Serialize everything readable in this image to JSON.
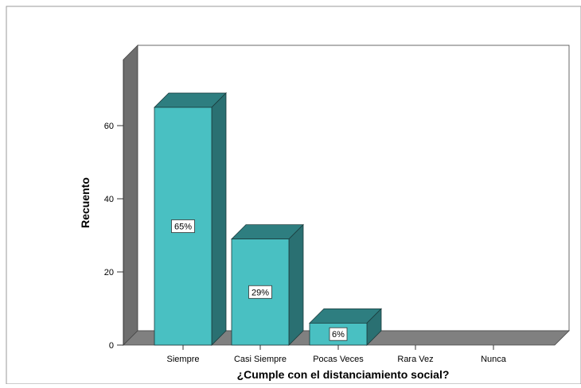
{
  "chart_data": {
    "type": "bar",
    "xlabel": "¿Cumple con el distanciamiento social?",
    "ylabel": "Recuento",
    "categories": [
      "Siempre",
      "Casi Siempre",
      "Pocas Veces",
      "Rara Vez",
      "Nunca"
    ],
    "values": [
      65,
      29,
      6,
      0,
      0
    ],
    "labels": [
      "65%",
      "29%",
      "6%",
      "",
      ""
    ],
    "yticks": [
      "0",
      "20",
      "40",
      "60"
    ],
    "ylim": [
      0,
      80
    ],
    "grid": false,
    "legend": "none",
    "colors": {
      "bar_front": "#49C0C2",
      "bar_top": "#2E7E80",
      "bar_side": "#2A7072",
      "wall": "#6E6E6E",
      "floor": "#808080",
      "plot_bg": "#FFFFFF"
    }
  }
}
